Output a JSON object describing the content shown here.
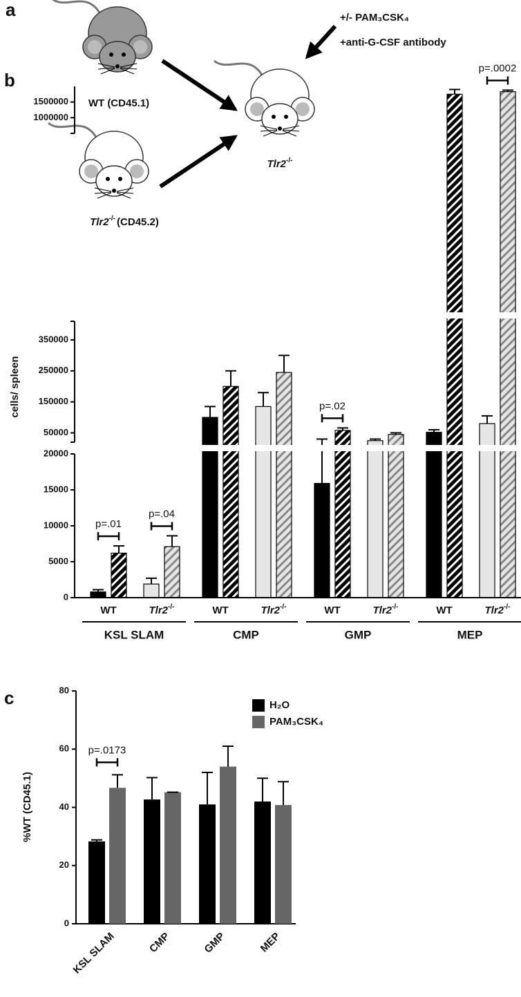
{
  "panel_a": {
    "letter": "a",
    "donor_wt": "WT (CD45.1)",
    "donor_ko": {
      "name": "Tlr2",
      "sup": "-/-",
      "rest": "(CD45.2)"
    },
    "recipient": {
      "name": "Tlr2",
      "sup": "-/-"
    },
    "treatment": [
      "+/- PAM₃CSK₄",
      "+anti-G-CSF antibody"
    ]
  },
  "chart_data": [
    {
      "type": "broken-bar",
      "panel_label": "b",
      "ylabel": "cells/ spleen",
      "axis_segments": [
        {
          "ylim": [
            0,
            20000
          ],
          "yticks": [
            0,
            5000,
            10000,
            15000,
            20000
          ]
        },
        {
          "ylim": [
            20000,
            410000
          ],
          "yticks": [
            50000,
            150000,
            250000,
            350000
          ]
        },
        {
          "ylim": [
            500000,
            2000000
          ],
          "yticks": [
            1000000,
            1500000
          ]
        }
      ],
      "categories": [
        "WT",
        "Tlr2",
        "WT",
        "Tlr2",
        "WT",
        "Tlr2",
        "WT",
        "Tlr2"
      ],
      "category_sups": [
        null,
        "-/-",
        null,
        "-/-",
        null,
        "-/-",
        null,
        "-/-"
      ],
      "groups": [
        "KSL SLAM",
        "CMP",
        "GMP",
        "MEP"
      ],
      "series": [
        {
          "hatch": false,
          "colors": [
            "#000000",
            "#e6e6e6",
            "#000000",
            "#e6e6e6",
            "#000000",
            "#e6e6e6",
            "#000000",
            "#e6e6e6"
          ],
          "values": [
            800,
            1900,
            100000,
            135000,
            15900,
            25000,
            52000,
            80000
          ],
          "errors": [
            300,
            800,
            35000,
            45000,
            14100,
            5000,
            8000,
            25000
          ]
        },
        {
          "hatch": true,
          "colors": [
            "#000000",
            "#e6e6e6",
            "#000000",
            "#e6e6e6",
            "#000000",
            "#e6e6e6",
            "#000000",
            "#e6e6e6"
          ],
          "values": [
            6200,
            7100,
            200000,
            245000,
            58000,
            45000,
            1750000,
            1830000
          ],
          "errors": [
            1000,
            1500,
            50000,
            55000,
            8000,
            5000,
            150000,
            50000
          ]
        }
      ],
      "annotations": [
        {
          "text": "p=.01",
          "category": 0
        },
        {
          "text": "p=.04",
          "category": 1
        },
        {
          "text": "p=.02",
          "category": 4
        },
        {
          "text": "p=.0002",
          "category": 7
        }
      ]
    },
    {
      "type": "bar",
      "panel_label": "c",
      "ylabel": "%WT (CD45.1)",
      "categories": [
        "KSL SLAM",
        "CMP",
        "GMP",
        "MEP"
      ],
      "ylim": [
        0,
        80
      ],
      "yticks": [
        0,
        20,
        40,
        60,
        80
      ],
      "legend": "top-right",
      "series": [
        {
          "name": "H₂O",
          "color": "#000000",
          "values": [
            28.3,
            42.7,
            41,
            42
          ],
          "errors": [
            0.5,
            7.5,
            11,
            8
          ]
        },
        {
          "name": "PAM₃CSK₄",
          "color": "#666666",
          "values": [
            46.7,
            45.2,
            54,
            40.8
          ],
          "errors": [
            4.5,
            0,
            7,
            8
          ]
        }
      ],
      "annotations": [
        {
          "text": "p=.0173",
          "category": 0
        }
      ]
    }
  ]
}
